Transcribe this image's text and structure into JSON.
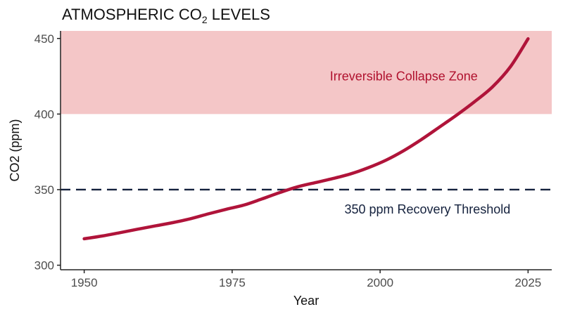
{
  "chart_data": {
    "type": "line",
    "title_main": "ATMOSPHERIC CO",
    "title_sub": "2",
    "title_end": " LEVELS",
    "xlabel": "Year",
    "ylabel": "CO2 (ppm)",
    "xlim": [
      1946,
      2029
    ],
    "ylim": [
      297,
      455
    ],
    "x_ticks": [
      1950,
      1975,
      2000,
      2025
    ],
    "y_ticks": [
      300,
      350,
      400,
      450
    ],
    "grid": false,
    "legend": "none",
    "series": [
      {
        "color": "#b0143a",
        "x": [
          1950,
          1953,
          1956,
          1959,
          1962,
          1965,
          1968,
          1971,
          1974,
          1977,
          1980,
          1983,
          1986,
          1989,
          1992,
          1995,
          1998,
          2001,
          2004,
          2007,
          2010,
          2013,
          2016,
          2019,
          2022,
          2025
        ],
        "y": [
          317.5,
          319.3,
          321.5,
          323.8,
          326.0,
          328.2,
          330.8,
          334.0,
          337.0,
          339.8,
          343.8,
          348.0,
          351.8,
          354.6,
          357.3,
          360.4,
          364.5,
          369.5,
          375.8,
          383.2,
          391.3,
          399.5,
          408.3,
          418.0,
          431.2,
          449.8
        ]
      }
    ],
    "zones": [
      {
        "label": "Irreversible Collapse Zone",
        "y_from": 400,
        "y_to": 455,
        "color": "#f4c6c7",
        "label_color": "#b0112e",
        "label_x": 2004,
        "label_y": 425
      }
    ],
    "reference_lines": [
      {
        "label": "350 ppm Recovery Threshold",
        "y": 350,
        "color": "#14213d",
        "style": "dashed",
        "label_x": 2008,
        "label_y": 337
      }
    ]
  }
}
